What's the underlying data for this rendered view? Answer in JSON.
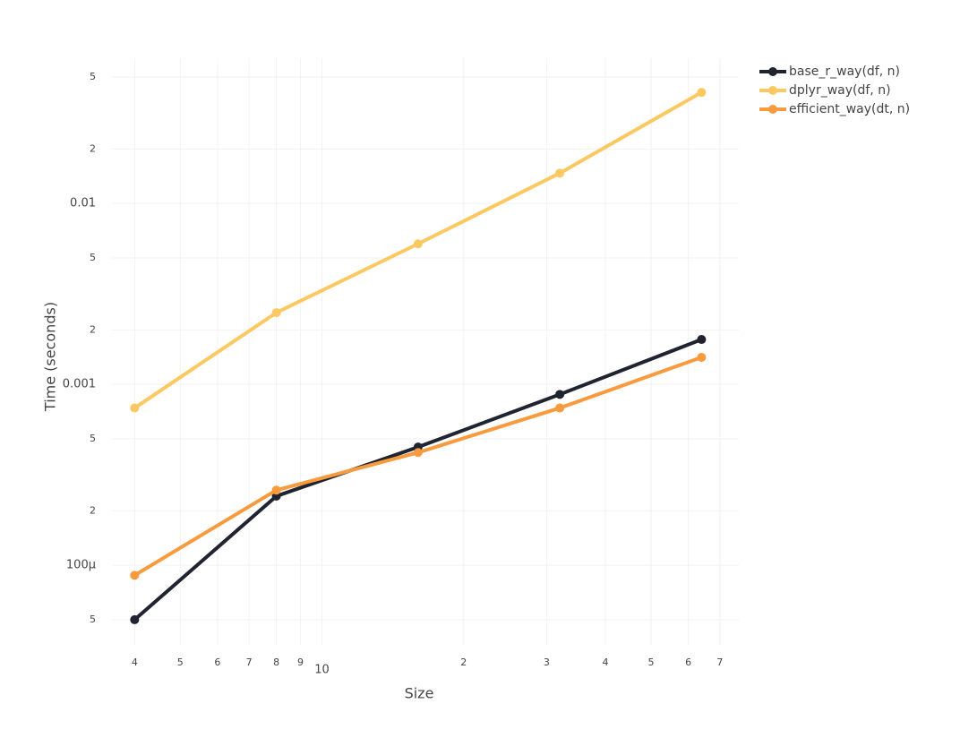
{
  "chart_data": {
    "type": "line",
    "x_label": "Size",
    "y_label": "Time (seconds)",
    "x": [
      4,
      8,
      16,
      32,
      64
    ],
    "log_x": true,
    "log_y": true,
    "grid": true,
    "legend": "top-right",
    "xlim": [
      3.58,
      76.8
    ],
    "ylim": [
      3.63e-05,
      0.0635
    ],
    "xticks": [
      4,
      5,
      6,
      7,
      8,
      9,
      10,
      {
        "value": 20,
        "label": "2"
      },
      {
        "value": 30,
        "label": "3"
      },
      {
        "value": 40,
        "label": "4"
      },
      {
        "value": 50,
        "label": "5"
      },
      {
        "value": 60,
        "label": "6"
      },
      {
        "value": 70,
        "label": "7"
      }
    ],
    "yticks": [
      {
        "value": 5e-05,
        "label": "5"
      },
      {
        "value": 0.0001,
        "label": "100μ"
      },
      {
        "value": 0.0002,
        "label": "2"
      },
      {
        "value": 0.0005,
        "label": "5"
      },
      0.001,
      {
        "value": 0.002,
        "label": "2"
      },
      {
        "value": 0.005,
        "label": "5"
      },
      0.01,
      {
        "value": 0.02,
        "label": "2"
      },
      {
        "value": 0.05,
        "label": "5"
      }
    ],
    "series": [
      {
        "name": "base_r_way(df, n)",
        "color": "#1f2430",
        "values": [
          5e-05,
          0.000241,
          0.00045,
          0.00088,
          0.00177
        ]
      },
      {
        "name": "dplyr_way(df, n)",
        "color": "#fcc862",
        "values": [
          0.00074,
          0.00249,
          0.00598,
          0.0147,
          0.0411
        ]
      },
      {
        "name": "efficient_way(dt, n)",
        "color": "#f89a3e",
        "values": [
          8.8e-05,
          0.00026,
          0.00042,
          0.00074,
          0.00141
        ]
      }
    ]
  }
}
